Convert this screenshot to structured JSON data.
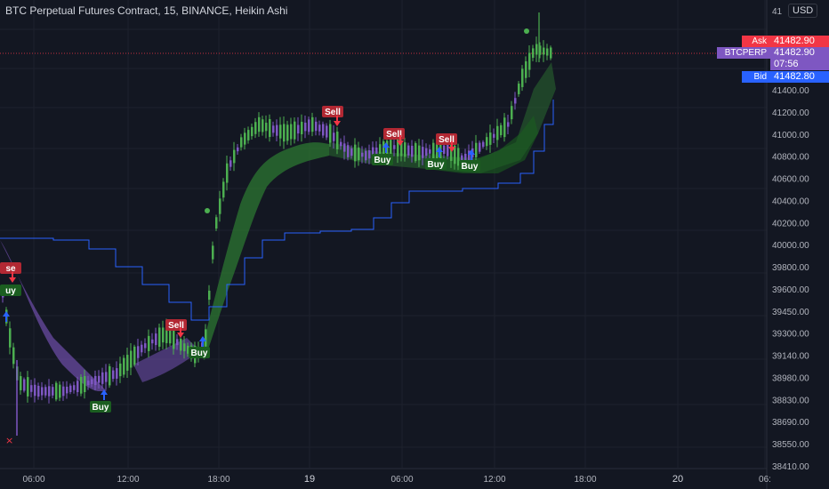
{
  "title": "BTC Perpetual Futures Contract, 15, BINANCE, Heikin Ashi",
  "currency": "USD",
  "price_axis": {
    "labels": [
      "41400.00",
      "41200.00",
      "41000.00",
      "40800.00",
      "40600.00",
      "40400.00",
      "40200.00",
      "40000.00",
      "39800.00",
      "39600.00",
      "39450.00",
      "39300.00",
      "39140.00",
      "38980.00",
      "38830.00",
      "38690.00",
      "38550.00",
      "38410.00"
    ],
    "top_partial": "41"
  },
  "time_axis": {
    "labels": [
      "06:00",
      "12:00",
      "18:00",
      "19",
      "06:00",
      "12:00",
      "18:00",
      "20",
      "06:"
    ]
  },
  "tags": {
    "ask_label": "Ask",
    "ask_price": "41482.90",
    "symbol_label": "BTCPERP",
    "last_price": "41482.90",
    "countdown": "07:56",
    "bid_label": "Bid",
    "bid_price": "41482.80"
  },
  "signals": {
    "buy_label": "Buy",
    "sell_label": "Sell",
    "partial_sell": "se",
    "partial_buy": "uy"
  },
  "colors": {
    "background": "#131722",
    "bull": "#4caf50",
    "bear": "#7e57c2",
    "vwap_line": "#2962ff",
    "ask": "#f23645",
    "bid": "#2962ff",
    "symbol": "#7e57c2"
  },
  "icons": [
    "close-x-icon",
    "arrow-up-icon",
    "arrow-down-icon"
  ]
}
